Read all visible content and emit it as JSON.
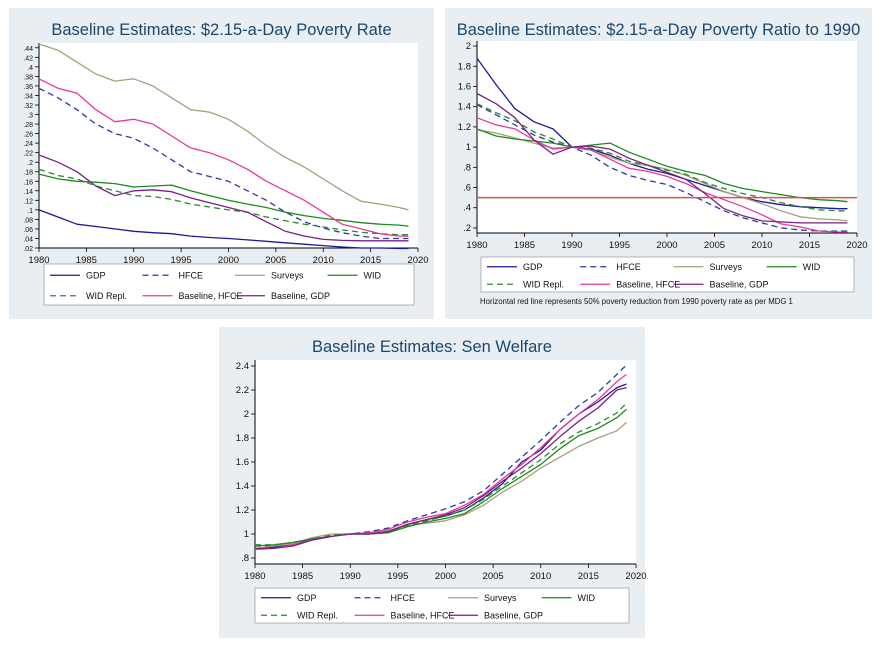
{
  "colors": {
    "panel_bg": "#e9eef2",
    "plot_bg": "#ffffff",
    "title": "#1a476f",
    "gdp": "#1a1a9a",
    "hfce": "#2a3aa8",
    "surveys": "#a7a07a",
    "wid": "#1f8a1f",
    "wid_repl": "#2a8a2a",
    "baseline_hfce": "#e8399a",
    "baseline_gdp": "#7a1f86",
    "reference_line": "#d9534f"
  },
  "legend_labels": [
    "GDP",
    "HFCE",
    "Surveys",
    "WID",
    "WID Repl.",
    "Baseline, HFCE",
    "Baseline, GDP"
  ],
  "chart_data": [
    {
      "type": "line",
      "title": "Baseline Estimates: $2.15-a-Day Poverty Rate",
      "xlim": [
        1980,
        2020
      ],
      "ylim": [
        0.02,
        0.45
      ],
      "xticks": [
        "1980",
        "1985",
        "1990",
        "1995",
        "2000",
        "2005",
        "2010",
        "2015",
        "2020"
      ],
      "yticks": [
        ".44",
        ".42",
        ".4",
        ".38",
        ".36",
        ".34",
        ".32",
        ".3",
        ".28",
        ".26",
        ".24",
        ".22",
        ".2",
        ".18",
        ".16",
        ".14",
        ".12",
        ".1",
        ".08",
        ".06",
        ".04",
        ".02"
      ],
      "x": [
        1980,
        1982,
        1984,
        1986,
        1988,
        1990,
        1992,
        1994,
        1996,
        1998,
        2000,
        2002,
        2004,
        2006,
        2008,
        2010,
        2012,
        2014,
        2016,
        2018,
        2019
      ],
      "series": [
        {
          "name": "GDP",
          "values": [
            0.1,
            0.085,
            0.07,
            0.065,
            0.06,
            0.055,
            0.052,
            0.05,
            0.045,
            0.042,
            0.04,
            0.037,
            0.034,
            0.031,
            0.028,
            0.025,
            0.022,
            0.02,
            0.02,
            0.019,
            0.019
          ]
        },
        {
          "name": "HFCE",
          "values": [
            0.355,
            0.335,
            0.31,
            0.28,
            0.26,
            0.25,
            0.23,
            0.205,
            0.18,
            0.17,
            0.16,
            0.14,
            0.12,
            0.095,
            0.075,
            0.062,
            0.052,
            0.045,
            0.04,
            0.04,
            0.04
          ]
        },
        {
          "name": "Surveys",
          "values": [
            0.448,
            0.435,
            0.41,
            0.385,
            0.37,
            0.375,
            0.36,
            0.335,
            0.31,
            0.305,
            0.29,
            0.265,
            0.235,
            0.21,
            0.19,
            0.165,
            0.14,
            0.118,
            0.112,
            0.105,
            0.1
          ]
        },
        {
          "name": "WID",
          "values": [
            0.175,
            0.165,
            0.16,
            0.158,
            0.155,
            0.148,
            0.15,
            0.152,
            0.14,
            0.13,
            0.12,
            0.112,
            0.105,
            0.095,
            0.088,
            0.082,
            0.078,
            0.073,
            0.07,
            0.068,
            0.066
          ]
        },
        {
          "name": "WID Repl.",
          "values": [
            0.185,
            0.172,
            0.165,
            0.15,
            0.14,
            0.13,
            0.128,
            0.122,
            0.112,
            0.106,
            0.1,
            0.095,
            0.085,
            0.077,
            0.07,
            0.064,
            0.058,
            0.053,
            0.05,
            0.048,
            0.048
          ]
        },
        {
          "name": "Baseline, HFCE",
          "values": [
            0.375,
            0.355,
            0.345,
            0.31,
            0.285,
            0.29,
            0.28,
            0.255,
            0.23,
            0.22,
            0.205,
            0.185,
            0.16,
            0.14,
            0.12,
            0.095,
            0.07,
            0.06,
            0.05,
            0.045,
            0.045
          ]
        },
        {
          "name": "Baseline, GDP",
          "values": [
            0.215,
            0.2,
            0.18,
            0.15,
            0.13,
            0.14,
            0.142,
            0.138,
            0.125,
            0.115,
            0.105,
            0.095,
            0.075,
            0.055,
            0.045,
            0.038,
            0.036,
            0.035,
            0.035,
            0.035,
            0.035
          ]
        }
      ]
    },
    {
      "type": "line",
      "title": "Baseline Estimates: $2.15-a-Day Poverty Ratio to 1990",
      "xlim": [
        1980,
        2020
      ],
      "ylim": [
        0.15,
        2.05
      ],
      "xticks": [
        "1980",
        "1985",
        "1990",
        "1995",
        "2000",
        "2005",
        "2010",
        "2015",
        "2020"
      ],
      "yticks": [
        "2",
        "1.8",
        "1.6",
        "1.4",
        "1.2",
        "1",
        ".8",
        ".6",
        ".4",
        ".2"
      ],
      "reference_line": 0.5,
      "note": "Horizontal red line represents 50% poverty reduction from 1990 poverty rate as per MDG 1",
      "x": [
        1980,
        1982,
        1984,
        1986,
        1988,
        1990,
        1992,
        1994,
        1996,
        1998,
        2000,
        2002,
        2004,
        2006,
        2008,
        2010,
        2012,
        2014,
        2016,
        2018,
        2019
      ],
      "series": [
        {
          "name": "GDP",
          "values": [
            1.88,
            1.62,
            1.38,
            1.25,
            1.18,
            1.0,
            0.98,
            0.92,
            0.84,
            0.78,
            0.74,
            0.68,
            0.62,
            0.56,
            0.5,
            0.46,
            0.43,
            0.41,
            0.4,
            0.39,
            0.39
          ]
        },
        {
          "name": "HFCE",
          "values": [
            1.42,
            1.32,
            1.22,
            1.12,
            1.05,
            1.0,
            0.92,
            0.8,
            0.72,
            0.67,
            0.63,
            0.55,
            0.46,
            0.37,
            0.3,
            0.25,
            0.2,
            0.18,
            0.17,
            0.17,
            0.17
          ]
        },
        {
          "name": "Surveys",
          "values": [
            1.17,
            1.14,
            1.09,
            1.04,
            0.99,
            1.0,
            0.97,
            0.9,
            0.84,
            0.82,
            0.78,
            0.72,
            0.64,
            0.56,
            0.5,
            0.44,
            0.37,
            0.31,
            0.29,
            0.28,
            0.27
          ]
        },
        {
          "name": "WID",
          "values": [
            1.18,
            1.11,
            1.08,
            1.06,
            1.04,
            1.0,
            1.02,
            1.04,
            0.95,
            0.88,
            0.81,
            0.76,
            0.72,
            0.64,
            0.59,
            0.56,
            0.53,
            0.5,
            0.48,
            0.47,
            0.46
          ]
        },
        {
          "name": "WID Repl.",
          "values": [
            1.43,
            1.34,
            1.26,
            1.15,
            1.08,
            1.0,
            0.99,
            0.94,
            0.86,
            0.82,
            0.77,
            0.73,
            0.65,
            0.59,
            0.54,
            0.5,
            0.45,
            0.41,
            0.38,
            0.37,
            0.37
          ]
        },
        {
          "name": "Baseline, HFCE",
          "values": [
            1.29,
            1.22,
            1.18,
            1.07,
            0.98,
            1.0,
            0.97,
            0.88,
            0.79,
            0.76,
            0.71,
            0.64,
            0.55,
            0.48,
            0.41,
            0.33,
            0.24,
            0.21,
            0.17,
            0.16,
            0.16
          ]
        },
        {
          "name": "Baseline, GDP",
          "values": [
            1.53,
            1.43,
            1.29,
            1.07,
            0.93,
            1.0,
            1.01,
            0.98,
            0.89,
            0.82,
            0.75,
            0.68,
            0.54,
            0.39,
            0.32,
            0.27,
            0.26,
            0.25,
            0.25,
            0.25,
            0.25
          ]
        }
      ]
    },
    {
      "type": "line",
      "title": "Baseline Estimates: Sen Welfare",
      "xlim": [
        1980,
        2020
      ],
      "ylim": [
        0.75,
        2.45
      ],
      "xticks": [
        "1980",
        "1985",
        "1990",
        "1995",
        "2000",
        "2005",
        "2010",
        "2015",
        "2020"
      ],
      "yticks": [
        "2.4",
        "2.2",
        "2",
        "1.8",
        "1.6",
        "1.4",
        "1.2",
        "1",
        ".8"
      ],
      "x": [
        1980,
        1982,
        1984,
        1986,
        1988,
        1990,
        1992,
        1994,
        1996,
        1998,
        2000,
        2002,
        2004,
        2006,
        2008,
        2010,
        2012,
        2014,
        2016,
        2018,
        2019
      ],
      "series": [
        {
          "name": "GDP",
          "values": [
            0.88,
            0.89,
            0.92,
            0.95,
            0.98,
            1.0,
            1.0,
            1.02,
            1.08,
            1.12,
            1.15,
            1.2,
            1.3,
            1.42,
            1.6,
            1.7,
            1.87,
            2.0,
            2.1,
            2.22,
            2.25
          ]
        },
        {
          "name": "HFCE",
          "values": [
            0.9,
            0.9,
            0.92,
            0.95,
            0.98,
            1.0,
            1.02,
            1.05,
            1.11,
            1.16,
            1.21,
            1.27,
            1.36,
            1.5,
            1.64,
            1.78,
            1.93,
            2.07,
            2.18,
            2.33,
            2.41
          ]
        },
        {
          "name": "Surveys",
          "values": [
            0.88,
            0.9,
            0.92,
            0.97,
            1.0,
            1.0,
            1.01,
            1.03,
            1.07,
            1.09,
            1.11,
            1.16,
            1.24,
            1.35,
            1.44,
            1.55,
            1.64,
            1.73,
            1.8,
            1.86,
            1.93
          ]
        },
        {
          "name": "WID",
          "values": [
            0.9,
            0.91,
            0.93,
            0.96,
            0.98,
            1.0,
            1.0,
            1.01,
            1.06,
            1.1,
            1.13,
            1.17,
            1.27,
            1.38,
            1.48,
            1.58,
            1.71,
            1.82,
            1.88,
            1.97,
            2.04
          ]
        },
        {
          "name": "WID Repl.",
          "values": [
            0.91,
            0.91,
            0.93,
            0.96,
            0.99,
            1.0,
            1.0,
            1.02,
            1.07,
            1.11,
            1.15,
            1.2,
            1.29,
            1.4,
            1.51,
            1.62,
            1.75,
            1.85,
            1.92,
            2.01,
            2.09
          ]
        },
        {
          "name": "Baseline, HFCE",
          "values": [
            0.87,
            0.88,
            0.91,
            0.95,
            0.98,
            1.0,
            1.01,
            1.04,
            1.1,
            1.14,
            1.17,
            1.24,
            1.33,
            1.46,
            1.58,
            1.72,
            1.87,
            2.0,
            2.12,
            2.27,
            2.33
          ]
        },
        {
          "name": "Baseline, GDP",
          "values": [
            0.88,
            0.88,
            0.9,
            0.95,
            0.98,
            1.0,
            1.0,
            1.02,
            1.08,
            1.12,
            1.16,
            1.22,
            1.32,
            1.44,
            1.55,
            1.67,
            1.81,
            1.94,
            2.05,
            2.2,
            2.22
          ]
        }
      ]
    }
  ]
}
